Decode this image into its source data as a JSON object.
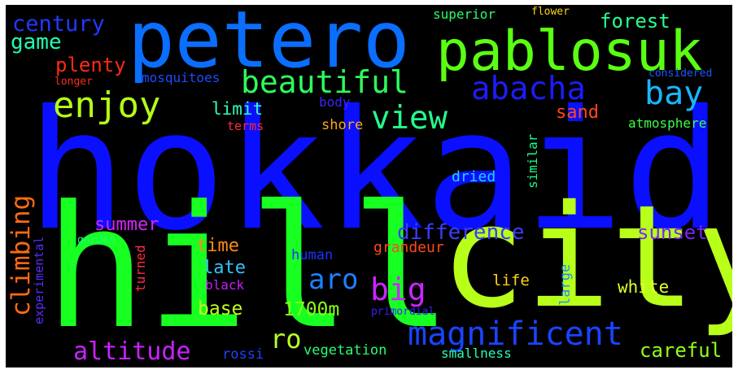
{
  "words": {
    "hokkaido": {
      "text": "hokkaido",
      "color": "#0a10ff"
    },
    "hill": {
      "text": "hill",
      "color": "#18ff22"
    },
    "city": {
      "text": "city",
      "color": "#b8ff1a"
    },
    "petero": {
      "text": "petero",
      "color": "#0a6eff"
    },
    "pablosuk": {
      "text": "pablosuk",
      "color": "#5aff12"
    },
    "magnificent": {
      "text": "magnificent",
      "color": "#1a44ff"
    },
    "beautiful": {
      "text": "beautiful",
      "color": "#2cff5c"
    },
    "abacha": {
      "text": "abacha",
      "color": "#1c1cff"
    },
    "enjoy": {
      "text": "enjoy",
      "color": "#b4ff16"
    },
    "view": {
      "text": "view",
      "color": "#24ff8c"
    },
    "bay": {
      "text": "bay",
      "color": "#18b6ff"
    },
    "century": {
      "text": "century",
      "color": "#2238ff"
    },
    "game": {
      "text": "game",
      "color": "#22ffb0"
    },
    "forest": {
      "text": "forest",
      "color": "#24ff90"
    },
    "plenty": {
      "text": "plenty",
      "color": "#ff2a14"
    },
    "superior": {
      "text": "superior",
      "color": "#28ff6a"
    },
    "flower": {
      "text": "flower",
      "color": "#ffd41a"
    },
    "mosquitoes": {
      "text": "mosquitoes",
      "color": "#1c4cff"
    },
    "longer": {
      "text": "longer",
      "color": "#ff2a1a"
    },
    "considered": {
      "text": "considered",
      "color": "#1a58ff"
    },
    "limit": {
      "text": "limit",
      "color": "#30ffb4"
    },
    "body": {
      "text": "body",
      "color": "#3a22ff"
    },
    "sand": {
      "text": "sand",
      "color": "#ff4818"
    },
    "atmosphere": {
      "text": "atmosphere",
      "color": "#3cff44"
    },
    "terms": {
      "text": "terms",
      "color": "#ff2a32"
    },
    "shore": {
      "text": "shore",
      "color": "#ffa818"
    },
    "similar": {
      "text": "similar",
      "color": "#16ff88"
    },
    "dried": {
      "text": "dried",
      "color": "#18d8ff"
    },
    "climbing": {
      "text": "climbing",
      "color": "#ff6a12"
    },
    "summer": {
      "text": "summer",
      "color": "#d824ff"
    },
    "difference": {
      "text": "difference",
      "color": "#3c3cff"
    },
    "sunset": {
      "text": "sunset",
      "color": "#7a24ff"
    },
    "garden": {
      "text": "garden",
      "color": "#1aff7c"
    },
    "experimental": {
      "text": "experimental",
      "color": "#5a2aff"
    },
    "time": {
      "text": "time",
      "color": "#ff8a14"
    },
    "grandeur": {
      "text": "grandeur",
      "color": "#ff4a1a"
    },
    "turned": {
      "text": "turned",
      "color": "#ff2a44"
    },
    "aro": {
      "text": "aro",
      "color": "#1c80ff"
    },
    "late": {
      "text": "late",
      "color": "#38c0ff"
    },
    "human": {
      "text": "human",
      "color": "#1c34ff"
    },
    "big": {
      "text": "big",
      "color": "#c826ff"
    },
    "black": {
      "text": "black",
      "color": "#c81cff"
    },
    "life": {
      "text": "life",
      "color": "#ffd21a"
    },
    "large": {
      "text": "large",
      "color": "#1a8cff"
    },
    "white": {
      "text": "white",
      "color": "#e4ff26"
    },
    "base": {
      "text": "base",
      "color": "#c0ff1c"
    },
    "1700m": {
      "text": "1700m",
      "color": "#8aff14"
    },
    "ro": {
      "text": "ro",
      "color": "#b8ff2a"
    },
    "primordial": {
      "text": "primordial",
      "color": "#3a1cff"
    },
    "altitude": {
      "text": "altitude",
      "color": "#c822ff"
    },
    "rossi": {
      "text": "rossi",
      "color": "#1c44ff"
    },
    "vegetation": {
      "text": "vegetation",
      "color": "#26ff70"
    },
    "smallness": {
      "text": "smallness",
      "color": "#26ffb8"
    },
    "careful": {
      "text": "careful",
      "color": "#90ff18"
    }
  }
}
